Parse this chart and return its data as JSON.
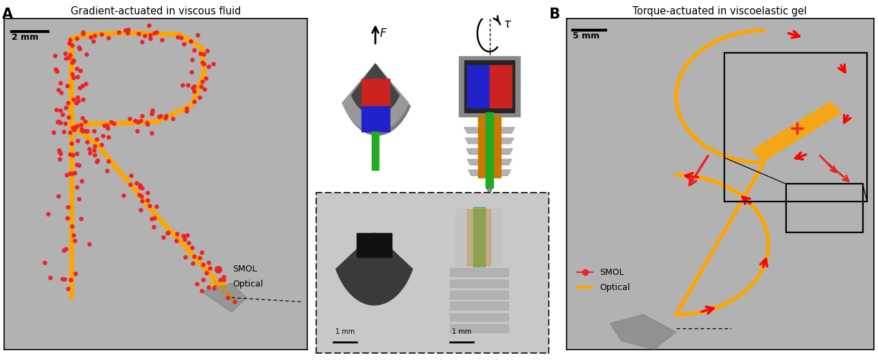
{
  "fig_width": 12.8,
  "fig_height": 5.31,
  "bg_color": "#ffffff",
  "panel_bg": "#b8b8b8",
  "title_A": "Gradient-actuated in viscous fluid",
  "title_B": "Torque-actuated in viscoelastic gel",
  "label_A": "A",
  "label_B": "B",
  "orange_color": "#FFA500",
  "red_color": "#EE2222",
  "scale_color": "#000000",
  "smol_label": "SMOL",
  "optical_label": "Optical",
  "scale_A": "2 mm",
  "scale_B": "5 mm",
  "force_label": "F",
  "torque_label": "τ",
  "scale_1mm": "1 mm"
}
